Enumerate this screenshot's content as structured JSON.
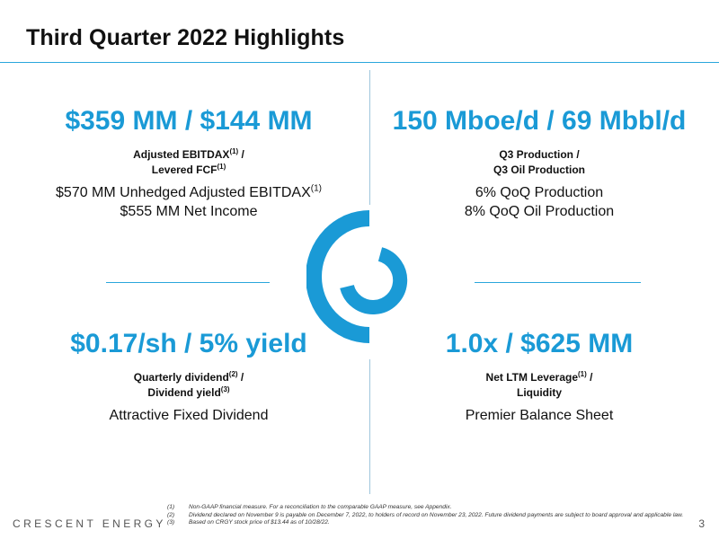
{
  "title": "Third Quarter 2022 Highlights",
  "brand": "CRESCENT ENERGY",
  "page_number": "3",
  "quadrants": {
    "top_left": {
      "headline": "$359 MM / $144 MM",
      "caption_line1": "Adjusted EBITDAX",
      "caption_line1_sup": "(1)",
      "caption_line1_tail": " /",
      "caption_line2": "Levered FCF",
      "caption_line2_sup": "(1)",
      "body_line1": "$570 MM Unhedged Adjusted EBITDAX",
      "body_line1_sup": "(1)",
      "body_line2": "$555 MM Net Income"
    },
    "top_right": {
      "headline": "150 Mboe/d / 69 Mbbl/d",
      "caption_line1": "Q3 Production /",
      "caption_line2": "Q3 Oil Production",
      "body_line1": "6% QoQ Production",
      "body_line2": "8% QoQ Oil Production"
    },
    "bottom_left": {
      "headline": "$0.17/sh / 5% yield",
      "caption_line1": "Quarterly dividend",
      "caption_line1_sup": "(2)",
      "caption_line1_tail": " /",
      "caption_line2": "Dividend yield",
      "caption_line2_sup": "(3)",
      "body_line1": "Attractive Fixed Dividend"
    },
    "bottom_right": {
      "headline": "1.0x / $625 MM",
      "caption_line1": "Net LTM Leverage",
      "caption_line1_sup": "(1)",
      "caption_line1_tail": " /",
      "caption_line2": "Liquidity",
      "body_line1": "Premier Balance Sheet"
    }
  },
  "footnotes": [
    {
      "num": "(1)",
      "text": "Non-GAAP financial measure. For a reconciliation to the comparable GAAP measure, see Appendix."
    },
    {
      "num": "(2)",
      "text": "Dividend declared on November 9 is payable on December 7, 2022, to holders of record on November 23, 2022. Future dividend payments are subject to board approval and applicable law."
    },
    {
      "num": "(3)",
      "text": "Based on CRGY stock price of $13.44 as of 10/28/22."
    }
  ],
  "colors": {
    "accent": "#1a9ad6",
    "rule": "#2aa6dc"
  },
  "logo_icon": "crescent-energy-logo-icon"
}
